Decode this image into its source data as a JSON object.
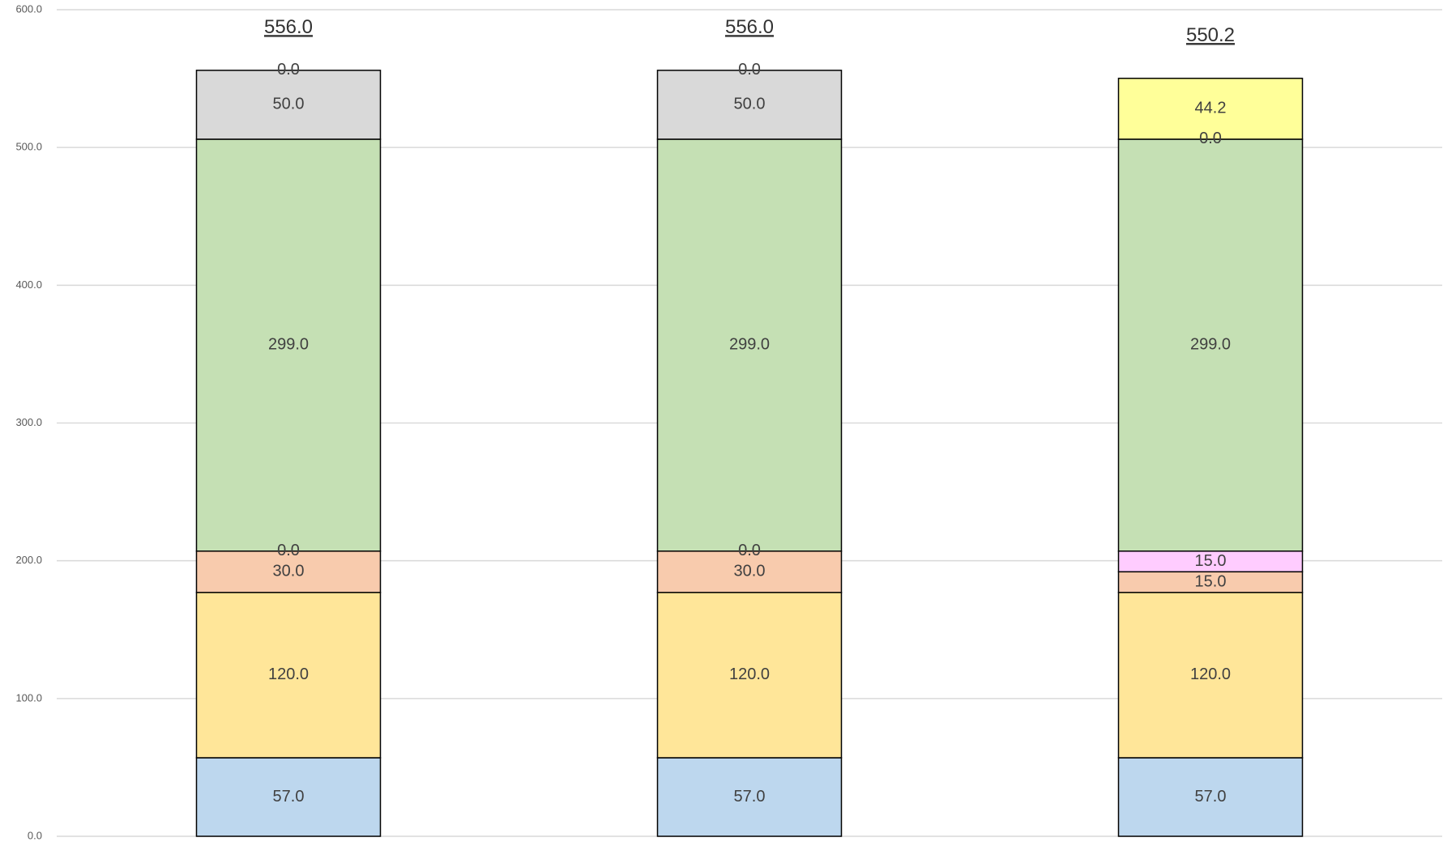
{
  "chart_data": {
    "type": "stacked_bar",
    "categories": [
      null,
      null,
      null
    ],
    "series": [
      {
        "color": "#bdd7ee",
        "values": [
          57,
          57,
          57
        ],
        "value_labels": [
          "57.0",
          "57.0",
          "57.0"
        ]
      },
      {
        "color": "#ffe699",
        "values": [
          120,
          120,
          120
        ],
        "value_labels": [
          "120.0",
          "120.0",
          "120.0"
        ]
      },
      {
        "color": "#f8cbad",
        "values": [
          30,
          30,
          15
        ],
        "value_labels": [
          "30.0",
          "30.0",
          "15.0"
        ]
      },
      {
        "color": "#ffccff",
        "values": [
          0,
          0,
          15
        ],
        "value_labels": [
          "0.0",
          "0.0",
          "15.0"
        ]
      },
      {
        "color": "#c5e0b4",
        "values": [
          299,
          299,
          299
        ],
        "value_labels": [
          "299.0",
          "299.0",
          "299.0"
        ]
      },
      {
        "color": "#d9d9d9",
        "values": [
          50,
          50,
          0
        ],
        "value_labels": [
          "50.0",
          "50.0",
          "0.0"
        ]
      },
      {
        "color": "#ffff99",
        "values": [
          0,
          0,
          44.2
        ],
        "value_labels": [
          "0.0",
          "0.0",
          "44.2"
        ]
      }
    ],
    "totals": [
      556,
      556,
      550.2
    ],
    "total_labels": [
      "556.0",
      "556.0",
      "550.2"
    ],
    "ylim": [
      0,
      600
    ],
    "yticks": [
      {
        "value": 0,
        "label": "0.0"
      },
      {
        "value": 100,
        "label": "100.0"
      },
      {
        "value": 200,
        "label": "200.0"
      },
      {
        "value": 300,
        "label": "300.0"
      },
      {
        "value": 400,
        "label": "400.0"
      },
      {
        "value": 500,
        "label": "500.0"
      },
      {
        "value": 600,
        "label": "600.0"
      }
    ],
    "grid": true
  }
}
